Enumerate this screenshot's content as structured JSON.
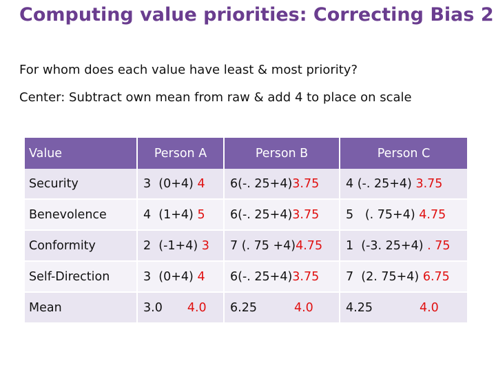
{
  "title": "Computing value priorities: Correcting Bias 2",
  "line1": "For whom does each value have least & most priority?",
  "line2": "Center: Subtract own mean from raw & add 4 to place on scale",
  "table": {
    "headers": [
      "Value",
      "Person A",
      "Person B",
      "Person C"
    ],
    "rows": [
      {
        "label": "Security",
        "a": {
          "calc": "3  (0+4)",
          "result": "4"
        },
        "b": {
          "calc": "6(-. 25+4)",
          "result": "3.75"
        },
        "c": {
          "calc": "4 (-. 25+4)",
          "result": "3.75"
        }
      },
      {
        "label": "Benevolence",
        "a": {
          "calc": "4  (1+4)",
          "result": "5"
        },
        "b": {
          "calc": "6(-. 25+4)",
          "result": "3.75"
        },
        "c": {
          "calc": "5   (. 75+4)",
          "result": "4.75"
        }
      },
      {
        "label": "Conformity",
        "a": {
          "calc": "2  (-1+4)",
          "result": "3"
        },
        "b": {
          "calc": "7 (. 75 +4)",
          "result": "4.75"
        },
        "c": {
          "calc": "1  (-3. 25+4)",
          "result": ". 75"
        }
      },
      {
        "label": "Self-Direction",
        "a": {
          "calc": "3  (0+4)",
          "result": "4"
        },
        "b": {
          "calc": "6(-. 25+4)",
          "result": "3.75"
        },
        "c": {
          "calc": "7  (2. 75+4)",
          "result": "6.75"
        }
      },
      {
        "label": "Mean",
        "a": {
          "calc": "3.0",
          "result": "4.0"
        },
        "b": {
          "calc": "6.25",
          "result": "4.0"
        },
        "c": {
          "calc": "4.25",
          "result": "4.0"
        }
      }
    ]
  },
  "colors": {
    "title": "#6a3d8f",
    "header_bg": "#7a5fa8",
    "row_odd": "#e9e5f1",
    "row_even": "#f4f2f8",
    "highlight": "#e01010"
  }
}
